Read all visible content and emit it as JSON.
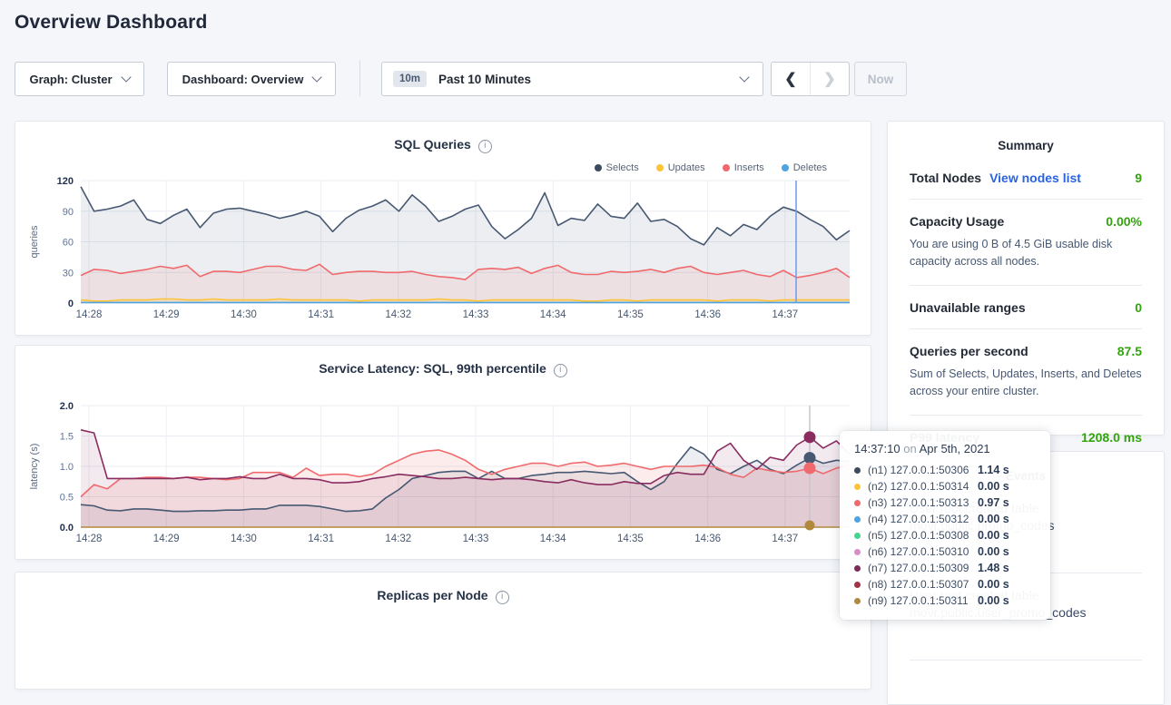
{
  "page": {
    "title": "Overview Dashboard"
  },
  "controls": {
    "graph_label": "Graph: Cluster",
    "dashboard_label": "Dashboard: Overview",
    "range_badge": "10m",
    "range_label": "Past 10 Minutes",
    "prev_icon": "chevron-left",
    "next_icon": "chevron-right",
    "now_label": "Now"
  },
  "summary": {
    "title": "Summary",
    "total_nodes_label": "Total Nodes",
    "view_nodes_link": "View nodes list",
    "total_nodes_value": "9",
    "capacity_label": "Capacity Usage",
    "capacity_value": "0.00%",
    "capacity_desc": "You are using 0 B of 4.5 GiB usable disk capacity across all nodes.",
    "unavailable_label": "Unavailable ranges",
    "unavailable_value": "0",
    "qps_label": "Queries per second",
    "qps_value": "87.5",
    "qps_desc": "Sum of Selects, Updates, Inserts, and Deletes across your entire cluster.",
    "p99_label": "P99 latency",
    "p99_value": "1208.0 ms",
    "value_color": "#33a30e",
    "link_color": "#2a63e0"
  },
  "events": {
    "title": "Events",
    "items": [
      {
        "line1": "User root created table",
        "line2": "movr.public.promo_codes"
      },
      {
        "line1": "User root created table",
        "line2": "movr.public.user_promo_codes"
      }
    ]
  },
  "tooltip": {
    "time": "14:37:10",
    "on": "on",
    "date": "Apr 5th, 2021",
    "rows": [
      {
        "color": "#3c4a5e",
        "label": "(n1) 127.0.0.1:50306",
        "value": "1.14 s"
      },
      {
        "color": "#fdc437",
        "label": "(n2) 127.0.0.1:50314",
        "value": "0.00 s"
      },
      {
        "color": "#f0696c",
        "label": "(n3) 127.0.0.1:50313",
        "value": "0.97 s"
      },
      {
        "color": "#4ea4e0",
        "label": "(n4) 127.0.0.1:50312",
        "value": "0.00 s"
      },
      {
        "color": "#45d48e",
        "label": "(n5) 127.0.0.1:50308",
        "value": "0.00 s"
      },
      {
        "color": "#d88cc8",
        "label": "(n6) 127.0.0.1:50310",
        "value": "0.00 s"
      },
      {
        "color": "#7d2b59",
        "label": "(n7) 127.0.0.1:50309",
        "value": "1.48 s"
      },
      {
        "color": "#a23246",
        "label": "(n8) 127.0.0.1:50307",
        "value": "0.00 s"
      },
      {
        "color": "#b1893c",
        "label": "(n9) 127.0.0.1:50311",
        "value": "0.00 s"
      }
    ]
  },
  "chart_data": [
    {
      "type": "line",
      "title": "SQL Queries",
      "ylabel": "queries",
      "ylim": [
        0,
        120
      ],
      "y_tick_values": [
        0,
        30,
        60,
        90,
        120
      ],
      "y_tick_labels": [
        "0",
        "30",
        "60",
        "90",
        "120"
      ],
      "x_ticks": [
        "14:28",
        "14:29",
        "14:30",
        "14:31",
        "14:32",
        "14:33",
        "14:34",
        "14:35",
        "14:36",
        "14:37"
      ],
      "legend": [
        {
          "name": "Selects",
          "color": "#3c4a5e"
        },
        {
          "name": "Updates",
          "color": "#fdc437"
        },
        {
          "name": "Inserts",
          "color": "#f0696c"
        },
        {
          "name": "Deletes",
          "color": "#4ea4e0"
        }
      ],
      "series": [
        {
          "name": "Selects",
          "color": "#475872",
          "fill": "rgba(71,88,114,0.10)",
          "values": [
            114,
            90,
            92,
            95,
            101,
            82,
            78,
            86,
            92,
            74,
            88,
            92,
            93,
            90,
            87,
            83,
            86,
            90,
            85,
            70,
            83,
            91,
            95,
            101,
            90,
            106,
            95,
            80,
            85,
            92,
            96,
            75,
            63,
            72,
            83,
            108,
            76,
            83,
            81,
            97,
            85,
            83,
            98,
            80,
            82,
            75,
            63,
            57,
            74,
            66,
            77,
            72,
            85,
            94,
            90,
            82,
            75,
            62,
            71
          ]
        },
        {
          "name": "Inserts",
          "color": "#f0696c",
          "fill": "rgba(240,105,108,0.10)",
          "values": [
            27,
            33,
            32,
            29,
            31,
            33,
            36,
            34,
            37,
            26,
            31,
            31,
            30,
            33,
            36,
            36,
            33,
            32,
            38,
            28,
            30,
            31,
            31,
            30,
            30,
            31,
            28,
            26,
            25,
            23,
            33,
            34,
            33,
            35,
            29,
            34,
            37,
            30,
            28,
            28,
            31,
            30,
            31,
            33,
            30,
            34,
            36,
            30,
            28,
            30,
            32,
            28,
            26,
            32,
            25,
            27,
            30,
            34,
            25
          ]
        },
        {
          "name": "Updates",
          "color": "#fdc437",
          "fill": "rgba(253,196,55,0.18)",
          "values": [
            3,
            2,
            2,
            3,
            3,
            3,
            4,
            4,
            3,
            3,
            4,
            3,
            3,
            3,
            3,
            4,
            3,
            3,
            3,
            3,
            3,
            2,
            3,
            3,
            3,
            3,
            3,
            4,
            3,
            3,
            2,
            3,
            3,
            3,
            3,
            3,
            3,
            3,
            2,
            2,
            3,
            3,
            2,
            3,
            3,
            3,
            3,
            3,
            2,
            3,
            3,
            3,
            2,
            3,
            3,
            3,
            3,
            3,
            3
          ]
        },
        {
          "name": "Deletes",
          "color": "#4ea4e0",
          "fill": null,
          "values": [
            0.5,
            0.5,
            0.5,
            0.5,
            0.5,
            0.5,
            0.5,
            0.5,
            0.5,
            0.5,
            0.5,
            0.5,
            0.5,
            0.5,
            0.5,
            0.5,
            0.5,
            0.5,
            0.5,
            0.5,
            0.5,
            0.5,
            0.5,
            0.5,
            0.5,
            0.5,
            0.5,
            0.5,
            0.5,
            0.5,
            0.5,
            0.5,
            0.5,
            0.5,
            0.5,
            0.5,
            0.5,
            0.5,
            0.5,
            0.5,
            0.5,
            0.5,
            0.5,
            0.5,
            0.5,
            0.5,
            0.5,
            0.5,
            0.5,
            0.5,
            0.5,
            0.5,
            0.5,
            0.5,
            0.5,
            0.5,
            0.5,
            0.5,
            0.5
          ]
        }
      ],
      "hover": {
        "x_label": "14:37:10",
        "color": "#6f9ce8"
      }
    },
    {
      "type": "line",
      "title": "Service Latency: SQL, 99th percentile",
      "ylabel": "latency (s)",
      "ylim": [
        0,
        2.0
      ],
      "y_tick_values": [
        0,
        0.5,
        1.0,
        1.5,
        2.0
      ],
      "y_tick_labels": [
        "0.0",
        "0.5",
        "1.0",
        "1.5",
        "2.0"
      ],
      "x_ticks": [
        "14:28",
        "14:29",
        "14:30",
        "14:31",
        "14:32",
        "14:33",
        "14:34",
        "14:35",
        "14:36",
        "14:37"
      ],
      "legend": [],
      "series": [
        {
          "name": "(n1) 127.0.0.1:50306",
          "color": "#475872",
          "fill": "rgba(71,88,114,0.10)",
          "hover_dot": true,
          "values": [
            0.37,
            0.35,
            0.28,
            0.27,
            0.3,
            0.3,
            0.28,
            0.26,
            0.26,
            0.27,
            0.27,
            0.28,
            0.28,
            0.3,
            0.3,
            0.36,
            0.36,
            0.36,
            0.34,
            0.3,
            0.26,
            0.27,
            0.3,
            0.48,
            0.62,
            0.8,
            0.85,
            0.9,
            0.92,
            0.92,
            0.8,
            0.92,
            0.8,
            0.8,
            0.85,
            0.87,
            0.9,
            0.9,
            0.92,
            0.9,
            0.88,
            0.9,
            0.75,
            0.62,
            0.75,
            1.05,
            1.32,
            1.2,
            0.95,
            0.88,
            1.0,
            1.1,
            0.95,
            0.88,
            1.02,
            1.14,
            1.05,
            1.1,
            1.08
          ]
        },
        {
          "name": "(n3) 127.0.0.1:50313",
          "color": "#f0696c",
          "fill": "rgba(240,105,108,0.13)",
          "hover_dot": true,
          "values": [
            0.5,
            0.7,
            0.63,
            0.8,
            0.8,
            0.82,
            0.82,
            0.8,
            0.82,
            0.82,
            0.8,
            0.78,
            0.8,
            0.9,
            0.9,
            0.9,
            0.82,
            0.97,
            0.85,
            0.87,
            0.87,
            0.83,
            0.87,
            1.0,
            1.1,
            1.2,
            1.25,
            1.27,
            1.2,
            1.1,
            0.95,
            0.87,
            0.95,
            1.0,
            1.05,
            1.05,
            1.0,
            1.05,
            1.07,
            1.0,
            1.02,
            1.05,
            1.0,
            0.95,
            1.0,
            1.0,
            1.0,
            1.02,
            0.98,
            0.87,
            0.82,
            0.97,
            0.93,
            0.9,
            0.92,
            0.97,
            0.88,
            0.97,
            1.02
          ]
        },
        {
          "name": "(n7) 127.0.0.1:50309",
          "color": "#8a2c60",
          "fill": "rgba(141,46,98,0.10)",
          "hover_dot": true,
          "values": [
            1.6,
            1.55,
            0.8,
            0.8,
            0.8,
            0.8,
            0.8,
            0.8,
            0.82,
            0.78,
            0.8,
            0.8,
            0.83,
            0.8,
            0.8,
            0.87,
            0.8,
            0.8,
            0.78,
            0.73,
            0.73,
            0.75,
            0.8,
            0.83,
            0.87,
            0.85,
            0.83,
            0.8,
            0.8,
            0.82,
            0.8,
            0.78,
            0.8,
            0.8,
            0.78,
            0.75,
            0.73,
            0.78,
            0.73,
            0.7,
            0.7,
            0.75,
            0.72,
            0.72,
            0.85,
            0.9,
            0.87,
            0.87,
            1.25,
            1.38,
            1.1,
            0.95,
            1.15,
            1.1,
            1.35,
            1.48,
            1.3,
            1.42,
            1.2
          ]
        },
        {
          "name": "(n9) 127.0.0.1:50311",
          "color": "#b1893c",
          "fill": null,
          "hover_dot": true,
          "values": [
            0,
            0,
            0,
            0,
            0,
            0,
            0,
            0,
            0,
            0,
            0,
            0,
            0,
            0,
            0,
            0,
            0,
            0,
            0,
            0,
            0,
            0,
            0,
            0,
            0,
            0,
            0,
            0,
            0,
            0,
            0,
            0,
            0,
            0,
            0,
            0,
            0,
            0,
            0,
            0,
            0,
            0,
            0,
            0,
            0,
            0,
            0,
            0,
            0,
            0,
            0,
            0,
            0,
            0,
            0,
            0,
            0,
            0,
            0
          ]
        }
      ],
      "hover": {
        "x_label": "14:37:10",
        "color": "#c3c7cd",
        "dot_index": 55
      }
    },
    {
      "type": "line",
      "title": "Replicas per Node",
      "ylabel": "",
      "series": []
    }
  ]
}
